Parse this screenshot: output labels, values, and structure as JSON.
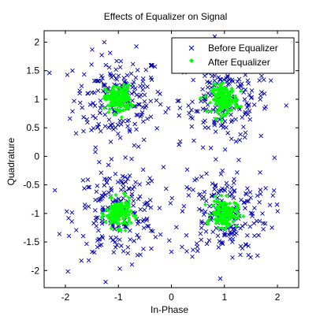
{
  "chart_data": {
    "type": "scatter",
    "title": "Effects of Equalizer on Signal",
    "xlabel": "In-Phase",
    "ylabel": "Quadrature",
    "xlim": [
      -2.4,
      2.4
    ],
    "ylim": [
      -2.3,
      2.2
    ],
    "xticks": [
      -2,
      -1,
      0,
      1,
      2
    ],
    "yticks": [
      2,
      1.5,
      1,
      0.5,
      0,
      -0.5,
      -1,
      -1.5,
      -2
    ],
    "grid": false,
    "legend_position": "top-right",
    "constellation_centers": [
      [
        -1,
        1
      ],
      [
        1,
        1
      ],
      [
        -1,
        -1
      ],
      [
        1,
        -1
      ]
    ],
    "series": [
      {
        "name": "Before Equalizer",
        "marker": "x",
        "color": "#0000aa",
        "points_per_cluster": 200,
        "spread": [
          0.42,
          0.4
        ]
      },
      {
        "name": "After Equalizer",
        "marker": "point",
        "color": "#00ff00",
        "points_per_cluster": 170,
        "spread": [
          0.12,
          0.12
        ]
      }
    ]
  }
}
